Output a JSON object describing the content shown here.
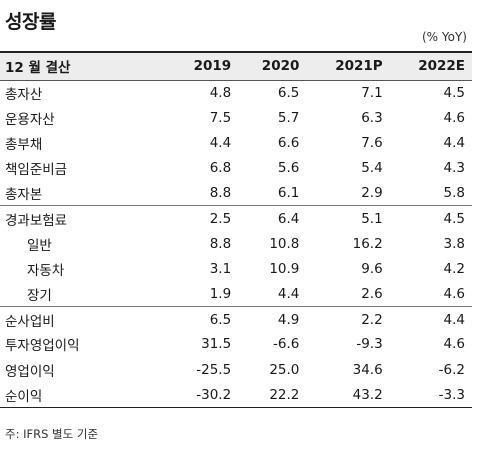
{
  "title": "성장률",
  "unit": "(% YoY)",
  "table": {
    "headers": [
      "12 월 결산",
      "2019",
      "2020",
      "2021P",
      "2022E"
    ],
    "rows": [
      {
        "label": "총자산",
        "values": [
          "4.8",
          "6.5",
          "7.1",
          "4.5"
        ]
      },
      {
        "label": "운용자산",
        "values": [
          "7.5",
          "5.7",
          "6.3",
          "4.6"
        ]
      },
      {
        "label": "총부채",
        "values": [
          "4.4",
          "6.6",
          "7.6",
          "4.4"
        ]
      },
      {
        "label": "책임준비금",
        "values": [
          "6.8",
          "5.6",
          "5.4",
          "4.3"
        ]
      },
      {
        "label": "총자본",
        "values": [
          "8.8",
          "6.1",
          "2.9",
          "5.8"
        ]
      },
      {
        "label": "경과보험료",
        "values": [
          "2.5",
          "6.4",
          "5.1",
          "4.5"
        ]
      },
      {
        "label": "일반",
        "values": [
          "8.8",
          "10.8",
          "16.2",
          "3.8"
        ]
      },
      {
        "label": "자동차",
        "values": [
          "3.1",
          "10.9",
          "9.6",
          "4.2"
        ]
      },
      {
        "label": "장기",
        "values": [
          "1.9",
          "4.4",
          "2.6",
          "4.6"
        ]
      },
      {
        "label": "순사업비",
        "values": [
          "6.5",
          "4.9",
          "2.2",
          "4.4"
        ]
      },
      {
        "label": "투자영업이익",
        "values": [
          "31.5",
          "-6.6",
          "-9.3",
          "4.6"
        ]
      },
      {
        "label": "영업이익",
        "values": [
          "-25.5",
          "25.0",
          "34.6",
          "-6.2"
        ]
      },
      {
        "label": "순이익",
        "values": [
          "-30.2",
          "22.2",
          "43.2",
          "-3.3"
        ]
      }
    ]
  },
  "note": "주: IFRS 별도 기준"
}
